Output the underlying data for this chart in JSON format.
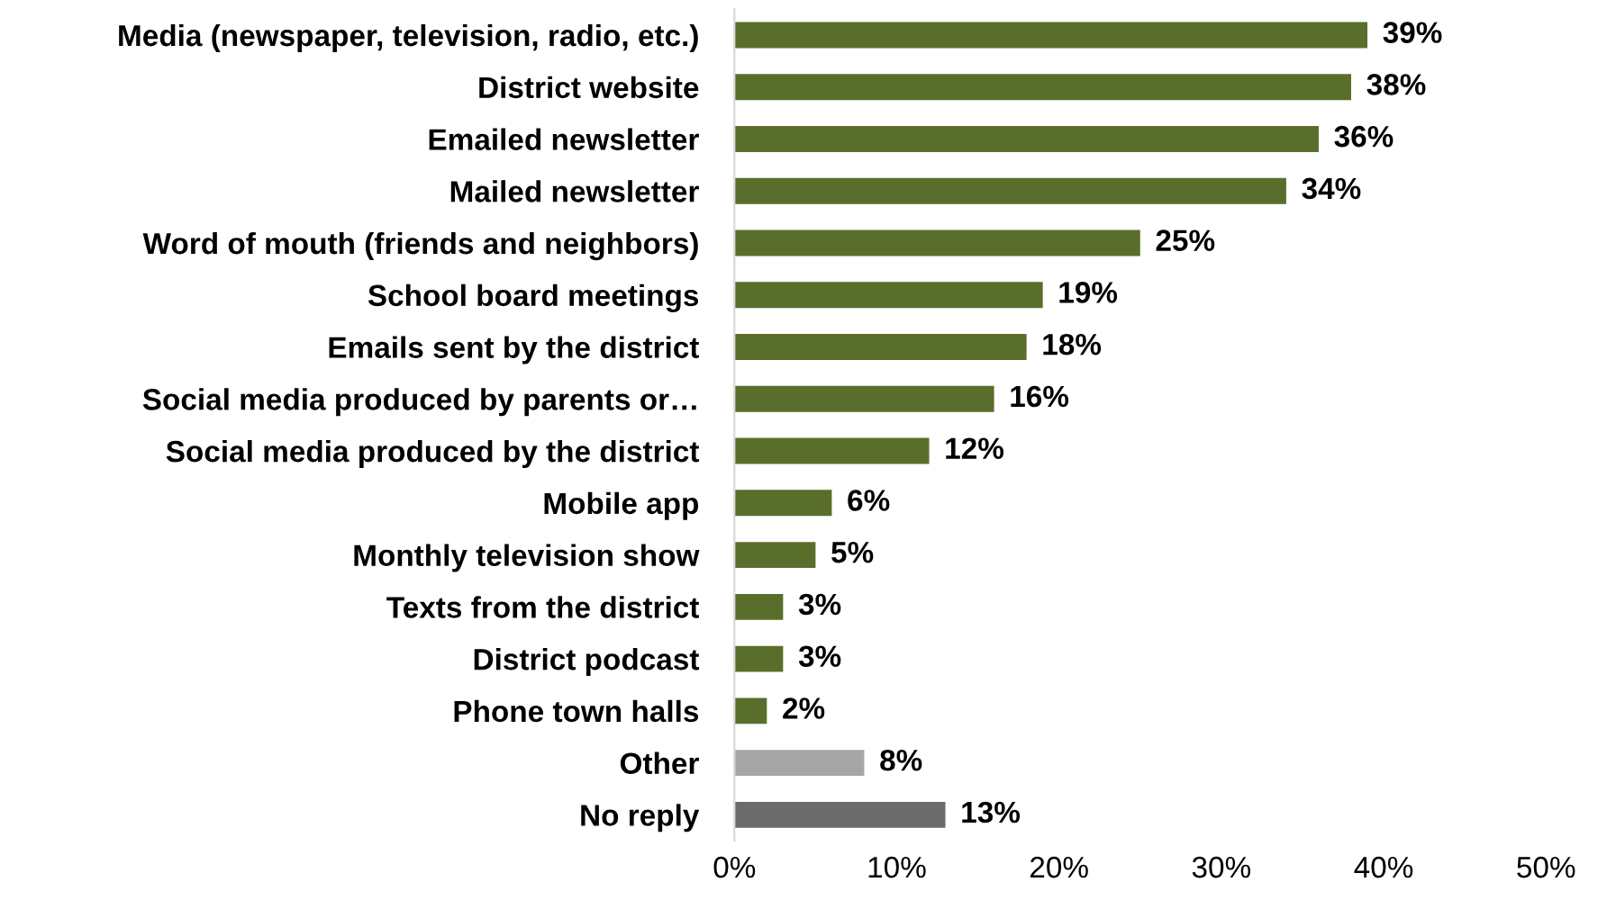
{
  "chart_data": {
    "type": "bar",
    "orientation": "horizontal",
    "categories": [
      "Media (newspaper, television, radio, etc.)",
      "District website",
      "Emailed newsletter",
      "Mailed newsletter",
      "Word of mouth (friends and neighbors)",
      "School board meetings",
      "Emails sent by the district",
      "Social media produced by parents or…",
      "Social media produced by the district",
      "Mobile app",
      "Monthly television show",
      "Texts from the district",
      "District podcast",
      "Phone town halls",
      "Other",
      "No reply"
    ],
    "values": [
      39,
      38,
      36,
      34,
      25,
      19,
      18,
      16,
      12,
      6,
      5,
      3,
      3,
      2,
      8,
      13
    ],
    "colors": [
      "#5a6e2b",
      "#5a6e2b",
      "#5a6e2b",
      "#5a6e2b",
      "#5a6e2b",
      "#5a6e2b",
      "#5a6e2b",
      "#5a6e2b",
      "#5a6e2b",
      "#5a6e2b",
      "#5a6e2b",
      "#5a6e2b",
      "#5a6e2b",
      "#5a6e2b",
      "#a6a6a6",
      "#6b6b6b"
    ],
    "value_labels": [
      "39%",
      "38%",
      "36%",
      "34%",
      "25%",
      "19%",
      "18%",
      "16%",
      "12%",
      "6%",
      "5%",
      "3%",
      "3%",
      "2%",
      "8%",
      "13%"
    ],
    "xlim": [
      0,
      50
    ],
    "xticks": [
      {
        "value": 0,
        "label": "0%"
      },
      {
        "value": 10,
        "label": "10%"
      },
      {
        "value": 20,
        "label": "20%"
      },
      {
        "value": 30,
        "label": "30%"
      },
      {
        "value": 40,
        "label": "40%"
      },
      {
        "value": 50,
        "label": "50%"
      }
    ],
    "grid": false,
    "legend": false
  }
}
